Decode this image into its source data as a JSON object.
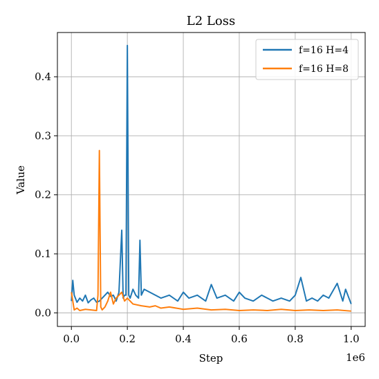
{
  "chart_data": {
    "type": "line",
    "title": "L2 Loss",
    "xlabel": "Step",
    "ylabel": "Value",
    "x_offset_label": "1e6",
    "xlim": [
      -0.05,
      1.05
    ],
    "ylim": [
      -0.023,
      0.475
    ],
    "xticks": [
      0.0,
      0.2,
      0.4,
      0.6,
      0.8,
      1.0
    ],
    "xtick_labels": [
      "0.0",
      "0.2",
      "0.4",
      "0.6",
      "0.8",
      "1.0"
    ],
    "yticks": [
      0.0,
      0.1,
      0.2,
      0.3,
      0.4
    ],
    "ytick_labels": [
      "0.0",
      "0.1",
      "0.2",
      "0.3",
      "0.4"
    ],
    "grid": true,
    "legend_position": "top-right",
    "series": [
      {
        "name": "f=16 H=4",
        "color": "#1f77b4",
        "x": [
          0.0,
          0.005,
          0.01,
          0.02,
          0.03,
          0.04,
          0.05,
          0.06,
          0.07,
          0.08,
          0.09,
          0.1,
          0.11,
          0.12,
          0.13,
          0.14,
          0.15,
          0.16,
          0.17,
          0.18,
          0.185,
          0.19,
          0.195,
          0.2,
          0.205,
          0.21,
          0.22,
          0.23,
          0.24,
          0.245,
          0.25,
          0.26,
          0.28,
          0.3,
          0.32,
          0.35,
          0.38,
          0.4,
          0.42,
          0.45,
          0.48,
          0.5,
          0.52,
          0.55,
          0.58,
          0.6,
          0.62,
          0.65,
          0.68,
          0.7,
          0.72,
          0.75,
          0.78,
          0.8,
          0.82,
          0.84,
          0.86,
          0.88,
          0.9,
          0.92,
          0.95,
          0.97,
          0.98,
          1.0
        ],
        "values": [
          0.02,
          0.055,
          0.03,
          0.018,
          0.025,
          0.02,
          0.03,
          0.017,
          0.022,
          0.025,
          0.018,
          0.02,
          0.025,
          0.03,
          0.035,
          0.028,
          0.03,
          0.02,
          0.035,
          0.14,
          0.025,
          0.03,
          0.03,
          0.453,
          0.03,
          0.025,
          0.04,
          0.03,
          0.025,
          0.123,
          0.03,
          0.04,
          0.035,
          0.03,
          0.025,
          0.03,
          0.02,
          0.035,
          0.025,
          0.03,
          0.02,
          0.048,
          0.025,
          0.03,
          0.02,
          0.035,
          0.025,
          0.02,
          0.03,
          0.025,
          0.02,
          0.025,
          0.02,
          0.03,
          0.06,
          0.02,
          0.025,
          0.02,
          0.03,
          0.025,
          0.05,
          0.02,
          0.04,
          0.015
        ]
      },
      {
        "name": "f=16 H=8",
        "color": "#ff7f0e",
        "x": [
          0.0,
          0.005,
          0.01,
          0.02,
          0.03,
          0.05,
          0.07,
          0.09,
          0.095,
          0.1,
          0.105,
          0.11,
          0.12,
          0.13,
          0.14,
          0.15,
          0.16,
          0.17,
          0.18,
          0.19,
          0.2,
          0.22,
          0.25,
          0.28,
          0.3,
          0.32,
          0.35,
          0.4,
          0.45,
          0.5,
          0.55,
          0.6,
          0.65,
          0.7,
          0.75,
          0.8,
          0.85,
          0.9,
          0.95,
          1.0
        ],
        "values": [
          0.035,
          0.02,
          0.005,
          0.008,
          0.004,
          0.006,
          0.005,
          0.004,
          0.03,
          0.275,
          0.01,
          0.005,
          0.01,
          0.02,
          0.035,
          0.015,
          0.025,
          0.03,
          0.035,
          0.02,
          0.025,
          0.015,
          0.012,
          0.01,
          0.012,
          0.008,
          0.01,
          0.006,
          0.008,
          0.005,
          0.006,
          0.004,
          0.005,
          0.004,
          0.006,
          0.004,
          0.005,
          0.004,
          0.005,
          0.003
        ]
      }
    ]
  }
}
